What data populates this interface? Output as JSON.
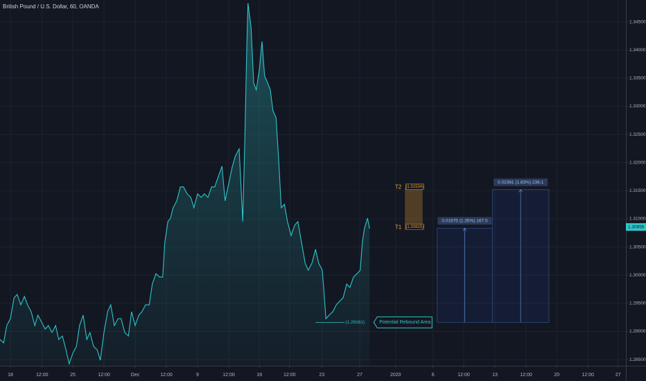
{
  "chart_data": {
    "type": "area",
    "title": "British Pound / U.S. Dollar, 60, OANDA",
    "color": "#2ec7c9",
    "grid": true,
    "xlim": [
      0,
      1204
    ],
    "ylim": [
      1.2839,
      1.3489
    ],
    "x": [
      0,
      7,
      13,
      20,
      27,
      33,
      40,
      47,
      53,
      60,
      67,
      73,
      80,
      87,
      93,
      100,
      107,
      113,
      120,
      127,
      133,
      140,
      147,
      153,
      160,
      167,
      173,
      180,
      187,
      193,
      200,
      207,
      213,
      220,
      227,
      233,
      240,
      247,
      253,
      260,
      267,
      273,
      280,
      287,
      293,
      300,
      307,
      313,
      317,
      323,
      328,
      333,
      340,
      347,
      353,
      360,
      367,
      373,
      380,
      387,
      393,
      400,
      407,
      413,
      420,
      427,
      433,
      440,
      447,
      453,
      460,
      467,
      471,
      475,
      477,
      483,
      488,
      493,
      499,
      504,
      509,
      515,
      520,
      525,
      531,
      536,
      541,
      547,
      553,
      560,
      567,
      573,
      580,
      587,
      593,
      600,
      607,
      613,
      620,
      627,
      633,
      640,
      647,
      653,
      660,
      667,
      673,
      680,
      687,
      693,
      697,
      701,
      707,
      711
    ],
    "values": [
      1.28857,
      1.28796,
      1.29104,
      1.29227,
      1.29597,
      1.29658,
      1.29473,
      1.29621,
      1.29473,
      1.2935,
      1.29104,
      1.29289,
      1.29165,
      1.29042,
      1.29104,
      1.28981,
      1.29104,
      1.28857,
      1.28919,
      1.28673,
      1.28426,
      1.28611,
      1.28734,
      1.29104,
      1.29289,
      1.28857,
      1.28981,
      1.28734,
      1.28673,
      1.28488,
      1.28981,
      1.2935,
      1.29473,
      1.29104,
      1.29227,
      1.29227,
      1.28981,
      1.28919,
      1.2935,
      1.29104,
      1.29289,
      1.2935,
      1.29473,
      1.29473,
      1.29843,
      1.30028,
      1.29966,
      1.29966,
      1.30582,
      1.30952,
      1.31013,
      1.31198,
      1.31321,
      1.31568,
      1.31568,
      1.31445,
      1.31383,
      1.31198,
      1.31445,
      1.31383,
      1.31445,
      1.31383,
      1.31568,
      1.31568,
      1.31753,
      1.31937,
      1.31321,
      1.31629,
      1.31937,
      1.32122,
      1.32245,
      1.30952,
      1.3243,
      1.34155,
      1.34833,
      1.34401,
      1.33416,
      1.33293,
      1.33662,
      1.34155,
      1.33539,
      1.33416,
      1.33293,
      1.32923,
      1.328,
      1.32061,
      1.31198,
      1.3126,
      1.30952,
      1.30705,
      1.3089,
      1.30952,
      1.30582,
      1.30213,
      1.30089,
      1.30213,
      1.30459,
      1.30213,
      1.30089,
      1.29227,
      1.29289,
      1.2935,
      1.29473,
      1.29535,
      1.29597,
      1.29843,
      1.29782,
      1.29966,
      1.30028,
      1.30089,
      1.30582,
      1.30829,
      1.31013,
      1.30829
    ],
    "yticks": [
      {
        "value": 1.345,
        "label": "1.34500"
      },
      {
        "value": 1.34,
        "label": "1.34000"
      },
      {
        "value": 1.335,
        "label": "1.33500"
      },
      {
        "value": 1.33,
        "label": "1.33000"
      },
      {
        "value": 1.325,
        "label": "1.32500"
      },
      {
        "value": 1.32,
        "label": "1.32000"
      },
      {
        "value": 1.315,
        "label": "1.31500"
      },
      {
        "value": 1.31,
        "label": "1.31000"
      },
      {
        "value": 1.305,
        "label": "1.30500"
      },
      {
        "value": 1.3,
        "label": "1.30000"
      },
      {
        "value": 1.295,
        "label": "1.29500"
      },
      {
        "value": 1.29,
        "label": "1.29000"
      },
      {
        "value": 1.285,
        "label": "1.28500"
      }
    ],
    "xticks": [
      {
        "value": 20,
        "label": "18"
      },
      {
        "value": 81,
        "label": "12:00"
      },
      {
        "value": 140,
        "label": "25"
      },
      {
        "value": 200,
        "label": "12:00"
      },
      {
        "value": 260,
        "label": "Dec"
      },
      {
        "value": 320,
        "label": "12:00"
      },
      {
        "value": 380,
        "label": "9"
      },
      {
        "value": 440,
        "label": "12:00"
      },
      {
        "value": 499,
        "label": "16"
      },
      {
        "value": 557,
        "label": "12:00"
      },
      {
        "value": 619,
        "label": "23"
      },
      {
        "value": 692,
        "label": "27"
      },
      {
        "value": 761,
        "label": "2020"
      },
      {
        "value": 833,
        "label": "6"
      },
      {
        "value": 892,
        "label": "12:00"
      },
      {
        "value": 952,
        "label": "13"
      },
      {
        "value": 1012,
        "label": "12:00"
      },
      {
        "value": 1071,
        "label": "20"
      },
      {
        "value": 1131,
        "label": "12:00"
      },
      {
        "value": 1189,
        "label": "27"
      }
    ],
    "last_price": {
      "value": 1.30856,
      "label": "1.30856"
    },
    "annotations": {
      "target_x": [
        779,
        813
      ],
      "targets": [
        {
          "label": "T2",
          "price": 1.31534,
          "price_label": "(1.31534)"
        },
        {
          "label": "T1",
          "price": 1.30825,
          "price_label": "(1.30825)"
        }
      ],
      "support": {
        "price": 1.29161,
        "price_label": "(1.29161)",
        "x": [
          607,
          663
        ],
        "note": "Potential Rebound Area"
      },
      "projections": [
        {
          "x": [
            841,
            947
          ],
          "change": 0.01675,
          "label": "0.01675 (1.35%) 167.5"
        },
        {
          "x": [
            947,
            1056
          ],
          "change": 0.02361,
          "label": "0.02361 (1.83%) 236.1"
        }
      ]
    }
  }
}
